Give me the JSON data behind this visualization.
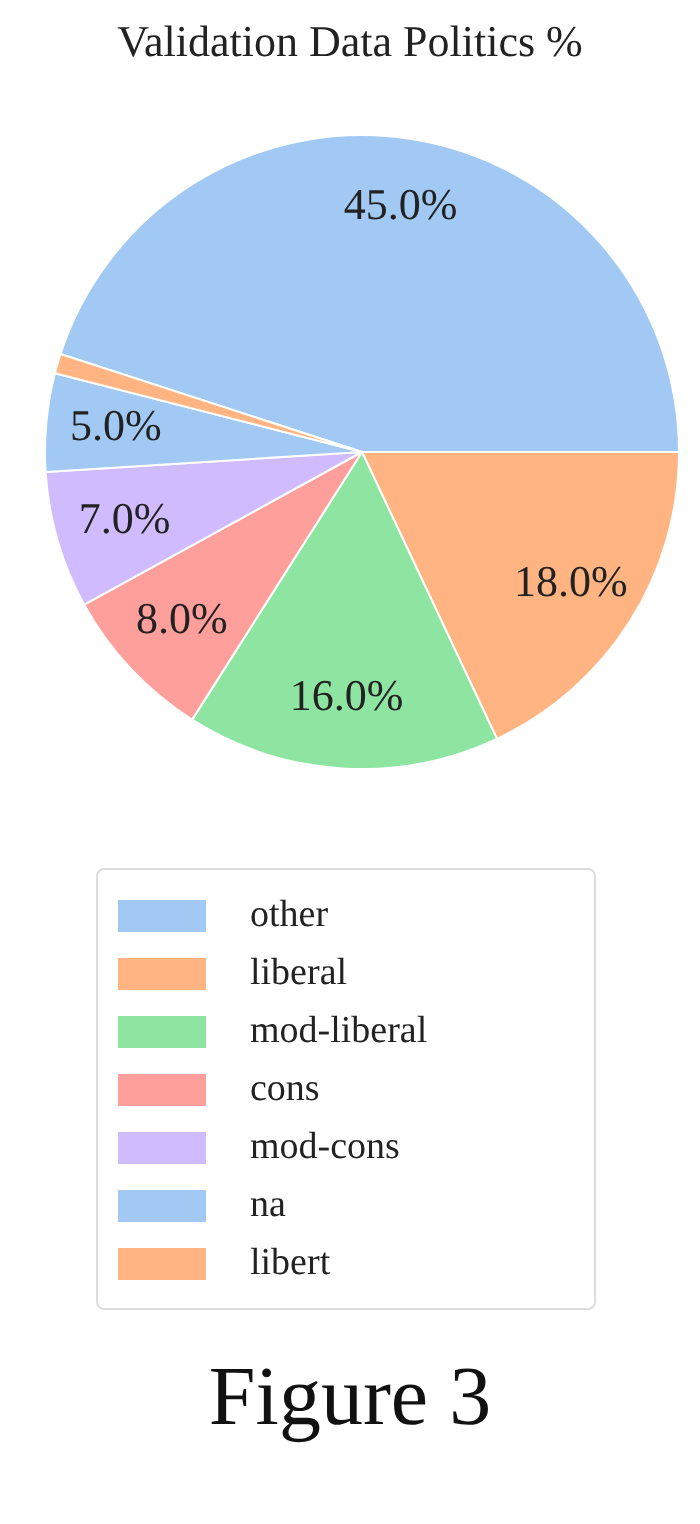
{
  "chart_data": {
    "type": "pie",
    "title": "Validation Data Politics %",
    "categories": [
      "other",
      "liberal",
      "mod-liberal",
      "cons",
      "mod-cons",
      "na",
      "libert"
    ],
    "values": [
      45,
      18,
      16,
      8,
      7,
      5,
      1
    ],
    "value_labels": [
      "45.0%",
      "18.0%",
      "16.0%",
      "8.0%",
      "7.0%",
      "5.0%",
      null
    ],
    "colors": [
      "#a1c9f4",
      "#ffb482",
      "#8de5a1",
      "#ff9f9b",
      "#d0bbff",
      "#a1c9f4",
      "#ffb482"
    ],
    "legend": "bottom",
    "annotations": [
      "Figure 3"
    ]
  }
}
